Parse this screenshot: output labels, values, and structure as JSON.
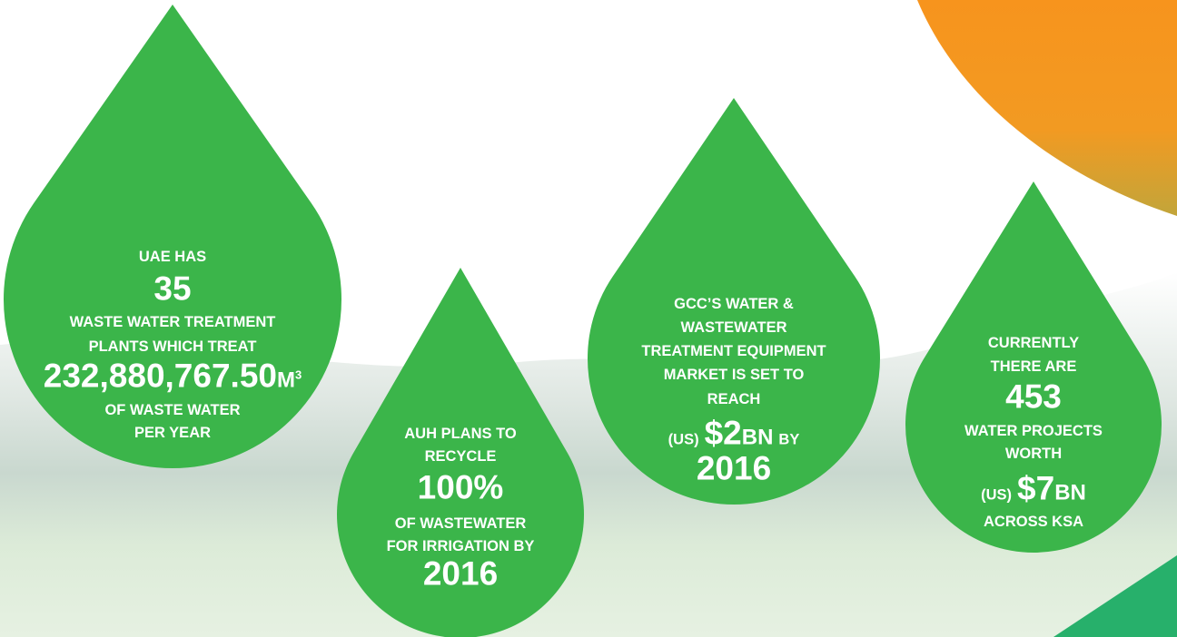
{
  "drops": [
    {
      "lines": [
        "UAE HAS",
        "35",
        "WASTE WATER TREATMENT",
        "PLANTS WHICH TREAT",
        [
          "232,880,767.50",
          "M",
          "3"
        ],
        "OF WASTE WATER",
        "PER YEAR"
      ]
    },
    {
      "lines": [
        "AUH PLANS TO",
        "RECYCLE",
        "100%",
        "OF WASTEWATER",
        "FOR IRRIGATION BY",
        "2016"
      ]
    },
    {
      "lines": [
        "GCC’S WATER &",
        "WASTEWATER",
        "TREATMENT EQUIPMENT",
        "MARKET IS SET TO",
        "REACH",
        [
          "(US)",
          "$2",
          "BN",
          "BY"
        ],
        "2016"
      ]
    },
    {
      "lines": [
        "CURRENTLY",
        "THERE ARE",
        "453",
        "WATER PROJECTS",
        "WORTH",
        [
          "(US)",
          "$7",
          "BN"
        ],
        "ACROSS KSA"
      ]
    }
  ]
}
